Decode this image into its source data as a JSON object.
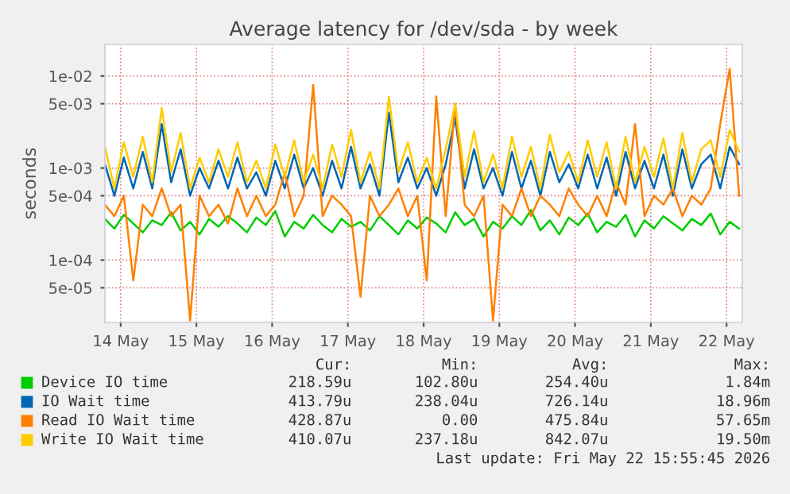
{
  "chart_data": {
    "type": "line",
    "title": "Average latency for /dev/sda - by week",
    "ylabel": "seconds",
    "x": [
      "2026-05-14T07:00",
      "2026-05-14T10:00",
      "2026-05-14T13:00",
      "2026-05-14T16:00",
      "2026-05-14T19:00",
      "2026-05-14T22:00",
      "2026-05-15T01:00",
      "2026-05-15T04:00",
      "2026-05-15T07:00",
      "2026-05-15T10:00",
      "2026-05-15T13:00",
      "2026-05-15T16:00",
      "2026-05-15T19:00",
      "2026-05-15T22:00",
      "2026-05-16T01:00",
      "2026-05-16T04:00",
      "2026-05-16T07:00",
      "2026-05-16T10:00",
      "2026-05-16T13:00",
      "2026-05-16T16:00",
      "2026-05-16T19:00",
      "2026-05-16T22:00",
      "2026-05-17T01:00",
      "2026-05-17T04:00",
      "2026-05-17T07:00",
      "2026-05-17T10:00",
      "2026-05-17T13:00",
      "2026-05-17T16:00",
      "2026-05-17T19:00",
      "2026-05-17T22:00",
      "2026-05-18T01:00",
      "2026-05-18T04:00",
      "2026-05-18T07:00",
      "2026-05-18T10:00",
      "2026-05-18T13:00",
      "2026-05-18T16:00",
      "2026-05-18T19:00",
      "2026-05-18T22:00",
      "2026-05-19T01:00",
      "2026-05-19T04:00",
      "2026-05-19T07:00",
      "2026-05-19T10:00",
      "2026-05-19T13:00",
      "2026-05-19T16:00",
      "2026-05-19T19:00",
      "2026-05-19T22:00",
      "2026-05-20T01:00",
      "2026-05-20T04:00",
      "2026-05-20T07:00",
      "2026-05-20T10:00",
      "2026-05-20T13:00",
      "2026-05-20T16:00",
      "2026-05-20T19:00",
      "2026-05-20T22:00",
      "2026-05-21T01:00",
      "2026-05-21T04:00",
      "2026-05-21T07:00",
      "2026-05-21T10:00",
      "2026-05-21T13:00",
      "2026-05-21T16:00",
      "2026-05-21T19:00",
      "2026-05-21T22:00",
      "2026-05-22T01:00",
      "2026-05-22T04:00",
      "2026-05-22T07:00",
      "2026-05-22T10:00",
      "2026-05-22T13:00",
      "2026-05-22T16:00"
    ],
    "series": [
      {
        "name": "Device IO time",
        "color": "#00cc00",
        "values": [
          0.00028,
          0.00022,
          0.00031,
          0.00025,
          0.0002,
          0.00027,
          0.00024,
          0.00033,
          0.00021,
          0.00026,
          0.00019,
          0.00028,
          0.00023,
          0.0003,
          0.00025,
          0.0002,
          0.00029,
          0.00024,
          0.00034,
          0.00018,
          0.00026,
          0.00022,
          0.00031,
          0.00024,
          0.0002,
          0.00028,
          0.00023,
          0.00026,
          0.00021,
          0.0003,
          0.00024,
          0.00019,
          0.00027,
          0.00022,
          0.00029,
          0.00025,
          0.0002,
          0.00033,
          0.00024,
          0.00028,
          0.00018,
          0.00026,
          0.00022,
          0.0003,
          0.00024,
          0.00035,
          0.00021,
          0.00027,
          0.00019,
          0.00029,
          0.00024,
          0.00032,
          0.0002,
          0.00026,
          0.00023,
          0.00031,
          0.00018,
          0.00027,
          0.00022,
          0.0003,
          0.00025,
          0.00021,
          0.00028,
          0.00024,
          0.00032,
          0.00019,
          0.00026,
          0.00022
        ]
      },
      {
        "name": "IO Wait time",
        "color": "#0066b3",
        "values": [
          0.0011,
          0.0005,
          0.0013,
          0.0006,
          0.0015,
          0.0006,
          0.003,
          0.0007,
          0.0016,
          0.0005,
          0.001,
          0.0006,
          0.0012,
          0.0006,
          0.0013,
          0.0006,
          0.0009,
          0.0005,
          0.0012,
          0.0006,
          0.0014,
          0.0006,
          0.001,
          0.0005,
          0.0012,
          0.0006,
          0.0017,
          0.0006,
          0.0011,
          0.0005,
          0.004,
          0.0007,
          0.0013,
          0.0006,
          0.001,
          0.0005,
          0.0011,
          0.0035,
          0.0006,
          0.0016,
          0.0006,
          0.001,
          0.0005,
          0.0015,
          0.0006,
          0.0012,
          0.0005,
          0.0015,
          0.0007,
          0.0011,
          0.0006,
          0.0014,
          0.0006,
          0.0013,
          0.0005,
          0.0015,
          0.0006,
          0.0012,
          0.0006,
          0.0014,
          0.0005,
          0.0016,
          0.0006,
          0.0011,
          0.0014,
          0.0006,
          0.0017,
          0.0011
        ]
      },
      {
        "name": "Read IO Wait time",
        "color": "#ff8000",
        "values": [
          0.0004,
          0.0003,
          0.0005,
          6e-05,
          0.0004,
          0.0003,
          0.0006,
          0.0003,
          0.0004,
          2.2e-05,
          0.0005,
          0.0003,
          0.0004,
          0.00025,
          0.0006,
          0.0003,
          0.0005,
          0.0003,
          0.0004,
          0.0009,
          0.0003,
          0.0005,
          0.008,
          0.0003,
          0.0005,
          0.0004,
          0.0003,
          4e-05,
          0.0005,
          0.0003,
          0.0004,
          0.0006,
          0.0003,
          0.0005,
          6e-05,
          0.006,
          0.0003,
          0.005,
          0.0004,
          0.0003,
          0.0005,
          2.2e-05,
          0.0004,
          0.0003,
          0.0006,
          0.0003,
          0.0005,
          0.0004,
          0.0003,
          0.0006,
          0.0004,
          0.0003,
          0.0005,
          0.0003,
          0.0007,
          0.0004,
          0.003,
          0.0003,
          0.0005,
          0.0004,
          0.0006,
          0.0003,
          0.0005,
          0.0004,
          0.0006,
          0.003,
          0.012,
          0.0005
        ]
      },
      {
        "name": "Write IO Wait time",
        "color": "#ffcc00",
        "values": [
          0.0017,
          0.0006,
          0.0019,
          0.0008,
          0.0022,
          0.0007,
          0.0045,
          0.0009,
          0.0024,
          0.0006,
          0.0013,
          0.0007,
          0.0016,
          0.0008,
          0.0019,
          0.0007,
          0.0012,
          0.0006,
          0.0018,
          0.0008,
          0.002,
          0.0007,
          0.0014,
          0.0006,
          0.0018,
          0.0008,
          0.0026,
          0.0007,
          0.0015,
          0.0006,
          0.006,
          0.0009,
          0.0019,
          0.0007,
          0.0013,
          0.0006,
          0.0016,
          0.005,
          0.0008,
          0.0025,
          0.0007,
          0.0014,
          0.0006,
          0.0022,
          0.0008,
          0.0017,
          0.0006,
          0.0023,
          0.0009,
          0.0015,
          0.0007,
          0.002,
          0.0008,
          0.0019,
          0.0006,
          0.0022,
          0.0007,
          0.0017,
          0.0008,
          0.0021,
          0.0006,
          0.0024,
          0.0007,
          0.0016,
          0.002,
          0.0008,
          0.0026,
          0.0015
        ]
      }
    ],
    "log": "y",
    "xlim": [
      "2026-05-14T07:00",
      "2026-05-22T17:00"
    ],
    "xticks": [
      {
        "value": "2026-05-14T12:00",
        "label": "14 May"
      },
      {
        "value": "2026-05-15T12:00",
        "label": "15 May"
      },
      {
        "value": "2026-05-16T12:00",
        "label": "16 May"
      },
      {
        "value": "2026-05-17T12:00",
        "label": "17 May"
      },
      {
        "value": "2026-05-18T12:00",
        "label": "18 May"
      },
      {
        "value": "2026-05-19T12:00",
        "label": "19 May"
      },
      {
        "value": "2026-05-20T12:00",
        "label": "20 May"
      },
      {
        "value": "2026-05-21T12:00",
        "label": "21 May"
      },
      {
        "value": "2026-05-22T12:00",
        "label": "22 May"
      }
    ],
    "ylim": [
      2.1e-05,
      0.022
    ],
    "yticks": [
      {
        "value": 5e-05,
        "label": "5e-05"
      },
      {
        "value": 0.0001,
        "label": "1e-04"
      },
      {
        "value": 0.0005,
        "label": "5e-04"
      },
      {
        "value": 0.001,
        "label": "1e-03"
      },
      {
        "value": 0.005,
        "label": "5e-03"
      },
      {
        "value": 0.01,
        "label": "1e-02"
      }
    ],
    "grid": true,
    "legend": "bottom",
    "marker": "none",
    "line_style": "solid",
    "annotations": [
      "Cur:",
      "Min:",
      "Avg:",
      "Max:",
      "218.59u",
      "102.80u",
      "254.40u",
      "1.84m",
      "413.79u",
      "238.04u",
      "726.14u",
      "18.96m",
      "428.87u",
      "0.00",
      "475.84u",
      "57.65m",
      "410.07u",
      "237.18u",
      "842.07u",
      "19.50m",
      "Last update: Fri May 22 15:55:45 2026"
    ]
  }
}
